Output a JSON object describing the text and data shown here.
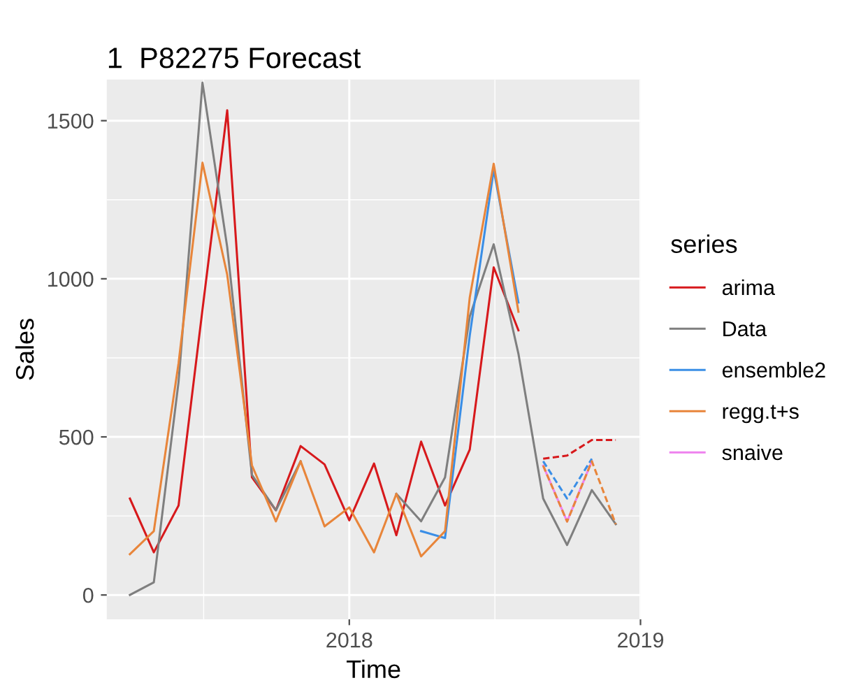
{
  "chart_data": {
    "type": "line",
    "title": "1  P82275 Forecast",
    "xlabel": "Time",
    "ylabel": "Sales",
    "legend_title": "series",
    "legend": "right",
    "grid": true,
    "xlim": [
      "2017-03-03",
      "2019-01-01"
    ],
    "xticks": [
      {
        "value": "2018-01",
        "label": "2018"
      },
      {
        "value": "2019-01",
        "label": "2019"
      }
    ],
    "ylim": [
      -77,
      1630
    ],
    "yticks": [
      0,
      500,
      1000,
      1500
    ],
    "series": [
      {
        "name": "arima",
        "color": "#d7191c",
        "x": [
          "2017-04",
          "2017-05",
          "2017-06",
          "2017-07",
          "2017-08",
          "2017-09",
          "2017-10",
          "2017-11",
          "2017-12",
          "2018-01",
          "2018-02",
          "2018-03",
          "2018-04",
          "2018-05",
          "2018-06",
          "2018-07",
          "2018-08"
        ],
        "values": [
          305,
          135,
          283,
          903,
          1533,
          372,
          268,
          471,
          413,
          236,
          416,
          189,
          485,
          283,
          460,
          1036,
          837
        ]
      },
      {
        "name": "Data",
        "color": "#7f7f7f",
        "x": [
          "2017-04",
          "2017-05",
          "2017-06",
          "2017-07",
          "2017-08",
          "2017-09",
          "2017-10",
          "2017-11",
          "2017-12",
          "2018-01",
          "2018-02",
          "2018-03",
          "2018-04",
          "2018-05",
          "2018-06",
          "2018-07",
          "2018-08",
          "2018-09",
          "2018-10",
          "2018-11",
          "2018-12"
        ],
        "values": [
          0,
          40,
          674,
          1620,
          1100,
          380,
          268,
          423,
          null,
          null,
          null,
          320,
          233,
          372,
          881,
          1109,
          763,
          305,
          158,
          332,
          224
        ]
      },
      {
        "name": "ensemble2",
        "color": "#3a8ee6",
        "x": [
          "2018-04",
          "2018-05",
          "2018-06",
          "2018-07",
          "2018-08"
        ],
        "values": [
          202,
          180,
          821,
          1345,
          925
        ]
      },
      {
        "name": "regg.t+s",
        "color": "#e8853a",
        "x": [
          "2017-04",
          "2017-05",
          "2017-06",
          "2017-07",
          "2017-08",
          "2017-09",
          "2017-10",
          "2017-11",
          "2017-12",
          "2018-01",
          "2018-02",
          "2018-03",
          "2018-04",
          "2018-05",
          "2018-06",
          "2018-07",
          "2018-08"
        ],
        "values": [
          129,
          202,
          733,
          1367,
          1013,
          410,
          233,
          423,
          217,
          277,
          135,
          320,
          122,
          202,
          941,
          1364,
          896
        ]
      },
      {
        "name": "snaive",
        "color": "#ee82ee",
        "x": [
          "2018-09",
          "2018-10",
          "2018-11"
        ],
        "values": [
          409,
          233,
          423
        ]
      },
      {
        "color": "#d7191c",
        "line_style": "dashed",
        "x": [
          "2018-09",
          "2018-10",
          "2018-11",
          "2018-12"
        ],
        "values": [
          431,
          441,
          490,
          490
        ]
      },
      {
        "color": "#3a8ee6",
        "line_style": "dashed",
        "x": [
          "2018-09",
          "2018-10",
          "2018-11"
        ],
        "values": [
          423,
          305,
          431
        ]
      },
      {
        "color": "#e8853a",
        "line_style": "dashed",
        "x": [
          "2018-09",
          "2018-10",
          "2018-11",
          "2018-12"
        ],
        "values": [
          409,
          232,
          423,
          224
        ]
      }
    ]
  }
}
